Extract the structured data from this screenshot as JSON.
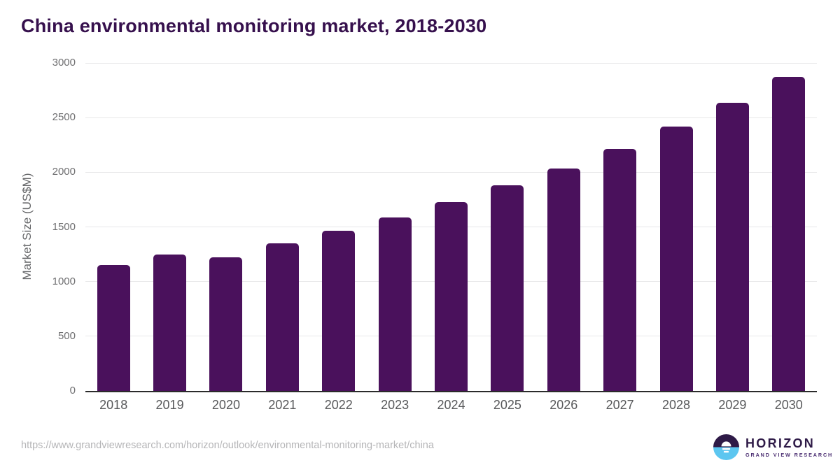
{
  "title": "China environmental monitoring market, 2018-2030",
  "chart_data": {
    "type": "bar",
    "title": "China environmental monitoring market, 2018-2030",
    "categories": [
      "2018",
      "2019",
      "2020",
      "2021",
      "2022",
      "2023",
      "2024",
      "2025",
      "2026",
      "2027",
      "2028",
      "2029",
      "2030"
    ],
    "values": [
      1150,
      1245,
      1220,
      1350,
      1465,
      1585,
      1725,
      1880,
      2035,
      2215,
      2420,
      2635,
      2870
    ],
    "xlabel": "",
    "ylabel": "Market Size (US$M)",
    "ylim": [
      0,
      3000
    ],
    "yticks": [
      0,
      500,
      1000,
      1500,
      2000,
      2500,
      3000
    ],
    "grid": true,
    "legend": false,
    "bar_color": "#4a115c"
  },
  "colors": {
    "title_text": "#36104d",
    "bar": "#4a115c",
    "gridline": "#e8e8e9",
    "axis_line": "#2b2b2b",
    "tick_text": "#6e6e70",
    "url_text": "#b5b5b7",
    "logo_purple": "#2e1a47",
    "logo_blue": "#5cc6f0"
  },
  "footer": {
    "source_url": "https://www.grandviewresearch.com/horizon/outlook/environmental-monitoring-market/china",
    "logo": {
      "name": "HORIZON",
      "subtitle": "GRAND VIEW RESEARCH"
    }
  }
}
